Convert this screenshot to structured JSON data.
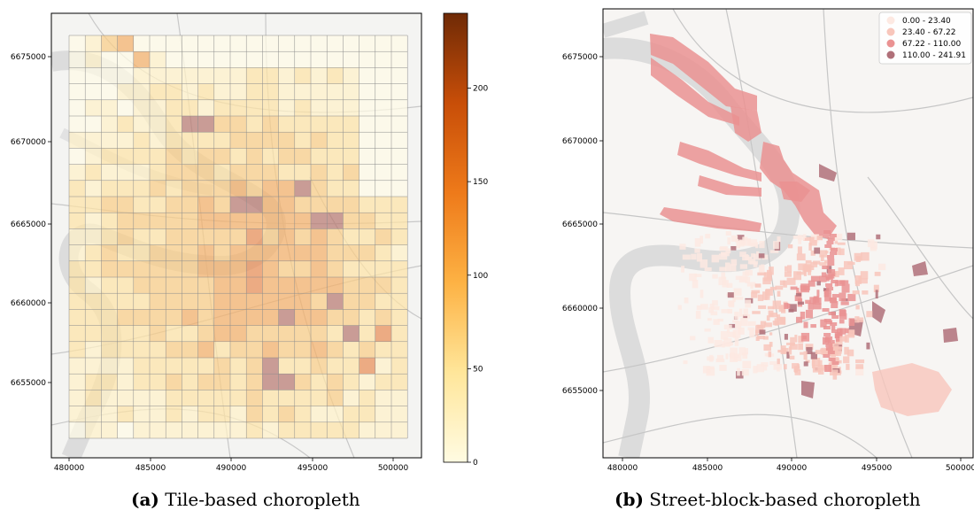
{
  "panels": [
    {
      "id": "a",
      "caption_label": "(a)",
      "caption_text": "Tile-based choropleth",
      "x_ticks": [
        "480000",
        "485000",
        "490000",
        "495000",
        "500000"
      ],
      "y_ticks": [
        "6675000",
        "6670000",
        "6665000",
        "6660000",
        "6655000"
      ],
      "colorbar": {
        "ticks": [
          "0",
          "50",
          "100",
          "150",
          "200"
        ],
        "range": [
          0,
          240
        ],
        "colors": [
          "#fffbe2",
          "#ffe69a",
          "#fdb244",
          "#ee7a1a",
          "#c84e08",
          "#6f2a06"
        ]
      }
    },
    {
      "id": "b",
      "caption_label": "(b)",
      "caption_text": "Street-block-based choropleth",
      "x_ticks": [
        "480000",
        "485000",
        "490000",
        "495000",
        "500000"
      ],
      "y_ticks": [
        "6675000",
        "6670000",
        "6665000",
        "6660000",
        "6655000"
      ],
      "legend": {
        "position": "top-right",
        "items": [
          {
            "label": "0.00 - 23.40",
            "color": "#fde9e2"
          },
          {
            "label": "23.40 - 67.22",
            "color": "#f8c6bb"
          },
          {
            "label": "67.22 - 110.00",
            "color": "#ea9292"
          },
          {
            "label": "110.00 - 241.91",
            "color": "#b07079"
          }
        ]
      }
    }
  ]
}
